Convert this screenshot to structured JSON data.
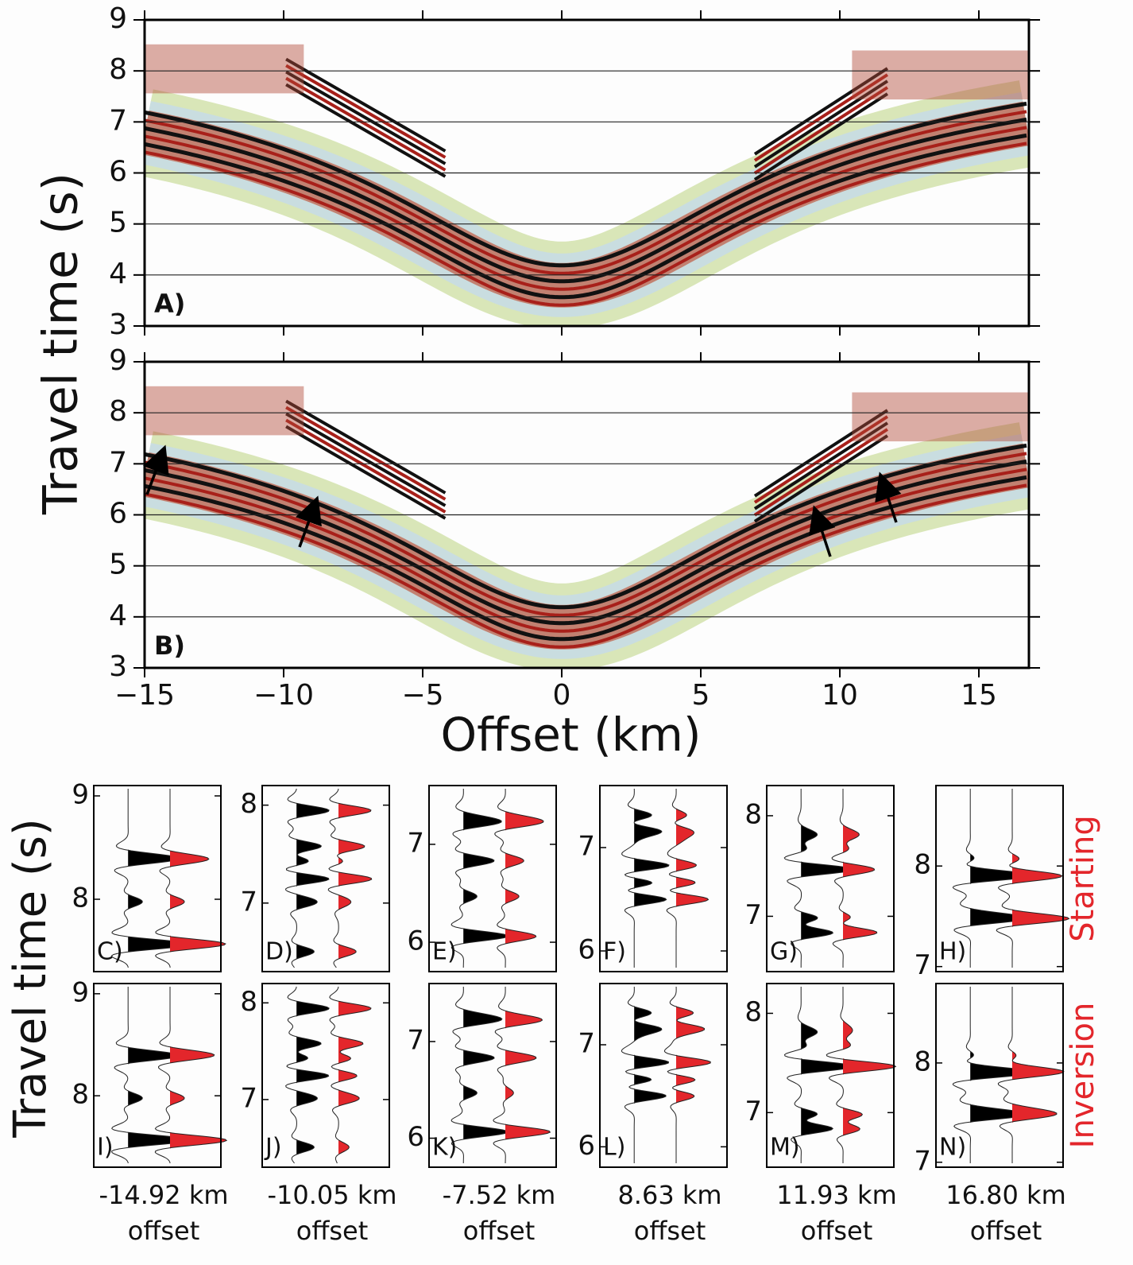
{
  "chart_data": [
    {
      "type": "seismic-gather",
      "panel_label": "A)",
      "y_label": "Travel time (s)",
      "xlim": [
        -15,
        16.8
      ],
      "xticks": [
        {
          "value": -15,
          "label": "−15"
        },
        {
          "value": -10,
          "label": "−10"
        },
        {
          "value": -5,
          "label": "−5"
        },
        0,
        5,
        10,
        15
      ],
      "ylim": [
        3,
        9
      ],
      "yticks": [
        3,
        4,
        5,
        6,
        7,
        8,
        9
      ],
      "grid": true
    },
    {
      "type": "seismic-gather",
      "panel_label": "B)",
      "x_label": "Offset (km)",
      "xlim": [
        -15,
        16.8
      ],
      "xticks": [
        {
          "value": -15,
          "label": "−15"
        },
        {
          "value": -10,
          "label": "−10"
        },
        {
          "value": -5,
          "label": "−5"
        },
        0,
        5,
        10,
        15
      ],
      "ylim": [
        3,
        9
      ],
      "yticks": [
        3,
        4,
        5,
        6,
        7,
        8,
        9
      ],
      "grid": true
    },
    {
      "type": "wiggle",
      "panel_label": "C)",
      "y_label": "Travel time (s)",
      "ylim": [
        7.3,
        9.1
      ],
      "yticks": [
        8,
        9
      ],
      "trace_colors": [
        "#000000",
        "#e3262b"
      ]
    },
    {
      "type": "wiggle",
      "panel_label": "D)",
      "ylim": [
        6.3,
        8.2
      ],
      "yticks": [
        7,
        8
      ],
      "trace_colors": [
        "#000000",
        "#e3262b"
      ]
    },
    {
      "type": "wiggle",
      "panel_label": "E)",
      "ylim": [
        5.7,
        7.6
      ],
      "yticks": [
        6,
        7
      ],
      "trace_colors": [
        "#000000",
        "#e3262b"
      ]
    },
    {
      "type": "wiggle",
      "panel_label": "F)",
      "ylim": [
        5.8,
        7.6
      ],
      "yticks": [
        6,
        7
      ],
      "trace_colors": [
        "#000000",
        "#e3262b"
      ]
    },
    {
      "type": "wiggle",
      "panel_label": "G)",
      "ylim": [
        6.45,
        8.3
      ],
      "yticks": [
        7,
        8
      ],
      "trace_colors": [
        "#000000",
        "#e3262b"
      ]
    },
    {
      "type": "wiggle",
      "panel_label": "H)",
      "row_label": "Starting",
      "ylim": [
        6.95,
        8.8
      ],
      "yticks": [
        7,
        8
      ],
      "trace_colors": [
        "#000000",
        "#e3262b"
      ]
    },
    {
      "type": "wiggle",
      "panel_label": "I)",
      "offset": "-14.92 km",
      "offset_caption": "offset",
      "ylim": [
        7.3,
        9.1
      ],
      "yticks": [
        8,
        9
      ],
      "trace_colors": [
        "#000000",
        "#e3262b"
      ]
    },
    {
      "type": "wiggle",
      "panel_label": "J)",
      "offset": "-10.05 km",
      "offset_caption": "offset",
      "ylim": [
        6.3,
        8.2
      ],
      "yticks": [
        7,
        8
      ],
      "trace_colors": [
        "#000000",
        "#e3262b"
      ]
    },
    {
      "type": "wiggle",
      "panel_label": "K)",
      "offset": "-7.52 km",
      "offset_caption": "offset",
      "ylim": [
        5.7,
        7.6
      ],
      "yticks": [
        6,
        7
      ],
      "trace_colors": [
        "#000000",
        "#e3262b"
      ]
    },
    {
      "type": "wiggle",
      "panel_label": "L)",
      "offset": "8.63 km",
      "offset_caption": "offset",
      "ylim": [
        5.8,
        7.6
      ],
      "yticks": [
        6,
        7
      ],
      "trace_colors": [
        "#000000",
        "#e3262b"
      ]
    },
    {
      "type": "wiggle",
      "panel_label": "M)",
      "offset": "11.93 km",
      "offset_caption": "offset",
      "ylim": [
        6.45,
        8.3
      ],
      "yticks": [
        7,
        8
      ],
      "trace_colors": [
        "#000000",
        "#e3262b"
      ]
    },
    {
      "type": "wiggle",
      "panel_label": "N)",
      "row_label": "Inversion",
      "offset": "16.80 km",
      "offset_caption": "offset",
      "ylim": [
        6.95,
        8.8
      ],
      "yticks": [
        7,
        8
      ],
      "trace_colors": [
        "#000000",
        "#e3262b"
      ]
    }
  ]
}
